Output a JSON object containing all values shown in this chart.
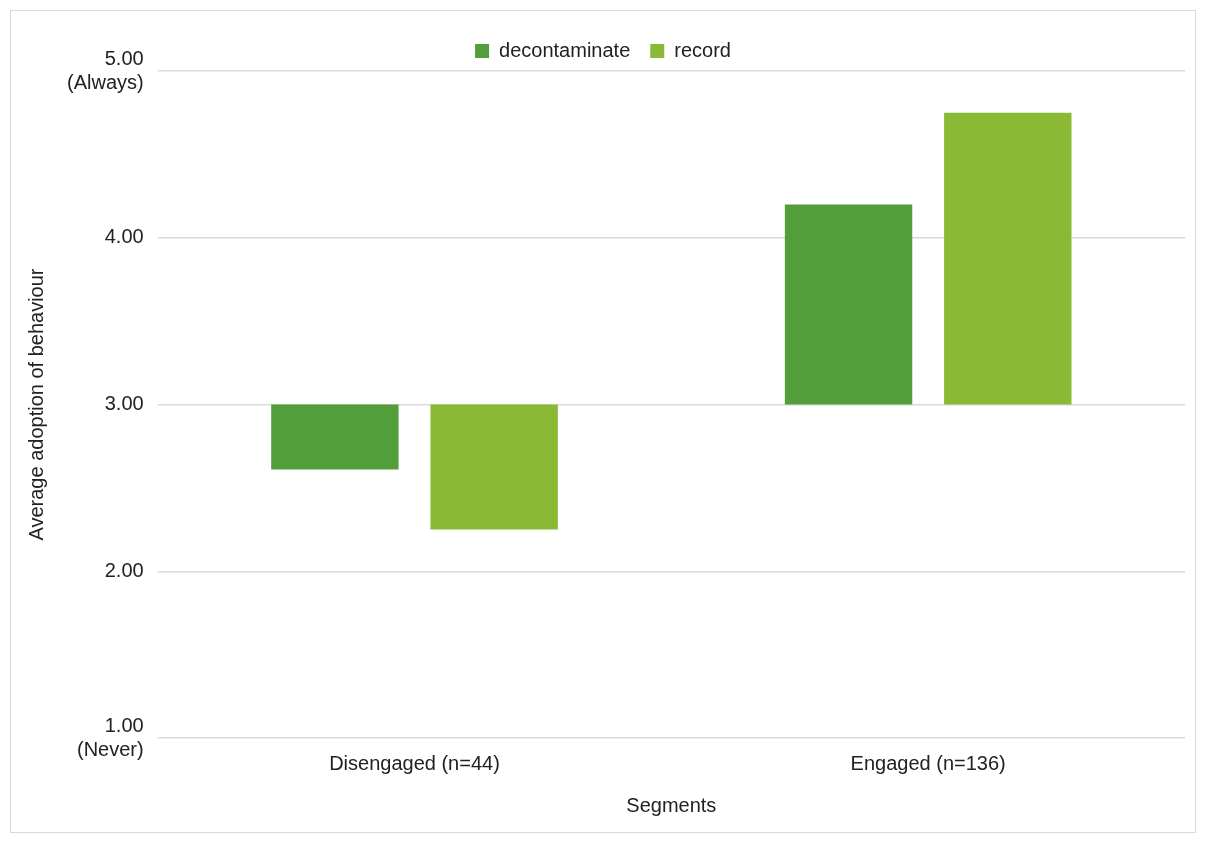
{
  "chart_data": {
    "type": "bar",
    "xlabel": "Segments",
    "ylabel": "Average adoption of behaviour",
    "categories": [
      "Disengaged (n=44)",
      "Engaged (n=136)"
    ],
    "series": [
      {
        "name": "decontaminate",
        "color": "#529e3a",
        "base": [
          3,
          3
        ],
        "values": [
          -0.39,
          1.2
        ]
      },
      {
        "name": "record",
        "color": "#8ab935",
        "base": [
          3,
          3
        ],
        "values": [
          -0.75,
          1.75
        ]
      }
    ],
    "ylim": [
      1,
      5
    ],
    "yticks": [
      {
        "value": 1,
        "label": "1.00\n(Never)"
      },
      {
        "value": 2,
        "label": "2.00"
      },
      {
        "value": 3,
        "label": "3.00"
      },
      {
        "value": 4,
        "label": "4.00"
      },
      {
        "value": 5,
        "label": "5.00\n(Always)"
      }
    ],
    "grid": "y",
    "legend": "top"
  }
}
